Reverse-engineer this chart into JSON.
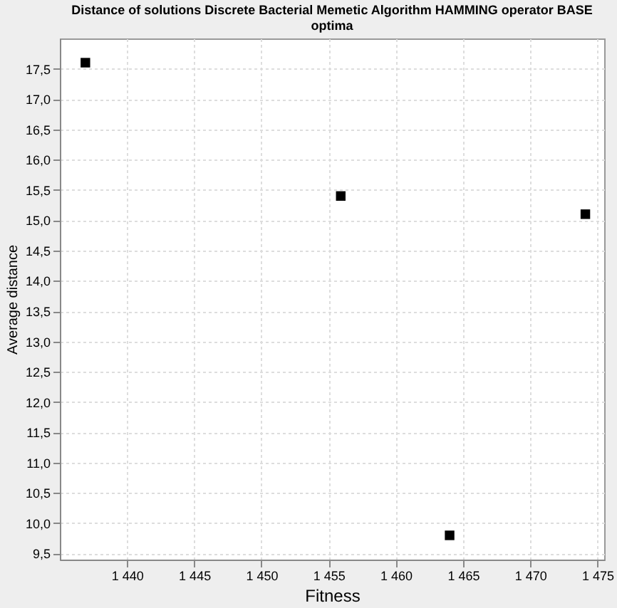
{
  "chart_data": {
    "type": "scatter",
    "title": [
      "Distance of solutions Discrete Bacterial Memetic Algorithm HAMMING operator BASE",
      "optima"
    ],
    "xlabel": "Fitness",
    "ylabel": "Average distance",
    "x": [
      1436.9,
      1455.9,
      1464.0,
      1474.1
    ],
    "series": [
      {
        "color": "#000000",
        "values": [
          17.6,
          15.4,
          9.8,
          15.1
        ]
      }
    ],
    "marker": "square",
    "grid": true,
    "legend": false,
    "xlim": [
      1435,
      1475.5
    ],
    "xticks": [
      {
        "value": 1440,
        "label": "1 440"
      },
      {
        "value": 1445,
        "label": "1 445"
      },
      {
        "value": 1450,
        "label": "1 450"
      },
      {
        "value": 1455,
        "label": "1 455"
      },
      {
        "value": 1460,
        "label": "1 460"
      },
      {
        "value": 1465,
        "label": "1 465"
      },
      {
        "value": 1470,
        "label": "1 470"
      },
      {
        "value": 1475,
        "label": "1 475"
      }
    ],
    "ylim": [
      9.4,
      18.0
    ],
    "yticks": [
      {
        "value": 9.5,
        "label": "9,5"
      },
      {
        "value": 10.0,
        "label": "10,0"
      },
      {
        "value": 10.5,
        "label": "10,5"
      },
      {
        "value": 11.0,
        "label": "11,0"
      },
      {
        "value": 11.5,
        "label": "11,5"
      },
      {
        "value": 12.0,
        "label": "12,0"
      },
      {
        "value": 12.5,
        "label": "12,5"
      },
      {
        "value": 13.0,
        "label": "13,0"
      },
      {
        "value": 13.5,
        "label": "13,5"
      },
      {
        "value": 14.0,
        "label": "14,0"
      },
      {
        "value": 14.5,
        "label": "14,5"
      },
      {
        "value": 15.0,
        "label": "15,0"
      },
      {
        "value": 15.5,
        "label": "15,5"
      },
      {
        "value": 16.0,
        "label": "16,0"
      },
      {
        "value": 16.5,
        "label": "16,5"
      },
      {
        "value": 17.0,
        "label": "17,0"
      },
      {
        "value": 17.5,
        "label": "17,5"
      }
    ]
  }
}
